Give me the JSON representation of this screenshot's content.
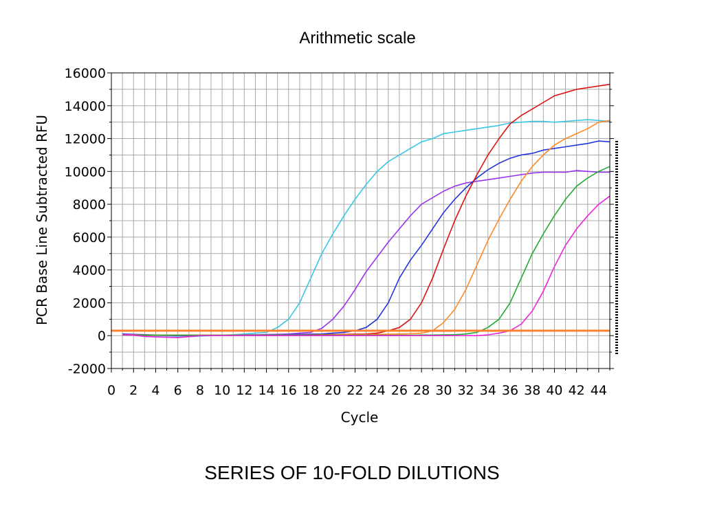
{
  "slide": {
    "title": "Arithmetic scale",
    "caption": "SERIES OF 10-FOLD DILUTIONS"
  },
  "chart_data": {
    "type": "line",
    "title": "Arithmetic scale",
    "xlabel": "Cycle",
    "ylabel": "PCR Base Line Subtracted RFU",
    "xlim": [
      0,
      45
    ],
    "ylim": [
      -2000,
      16000
    ],
    "xticks": [
      0,
      2,
      4,
      6,
      8,
      10,
      12,
      14,
      16,
      18,
      20,
      22,
      24,
      26,
      28,
      30,
      32,
      34,
      36,
      38,
      40,
      42,
      44
    ],
    "yticks": [
      -2000,
      0,
      2000,
      4000,
      6000,
      8000,
      10000,
      12000,
      14000,
      16000
    ],
    "grid": true,
    "legend": "none",
    "threshold": {
      "value": 300,
      "color": "#ff7f2a"
    },
    "series": [
      {
        "color": "#38c6e6",
        "x": [
          1,
          2,
          3,
          4,
          5,
          6,
          7,
          8,
          9,
          10,
          11,
          12,
          13,
          14,
          15,
          16,
          17,
          18,
          19,
          20,
          21,
          22,
          23,
          24,
          25,
          26,
          27,
          28,
          29,
          30,
          31,
          32,
          33,
          34,
          35,
          36,
          37,
          38,
          39,
          40,
          41,
          42,
          43,
          44,
          45
        ],
        "values": [
          50,
          30,
          -50,
          -70,
          -80,
          -80,
          -60,
          -30,
          0,
          30,
          60,
          100,
          150,
          200,
          500,
          1000,
          2000,
          3500,
          5000,
          6200,
          7300,
          8300,
          9200,
          10000,
          10600,
          11000,
          11400,
          11800,
          12000,
          12300,
          12400,
          12500,
          12600,
          12700,
          12800,
          12950,
          13000,
          13050,
          13050,
          13000,
          13050,
          13100,
          13150,
          13100,
          13050
        ]
      },
      {
        "color": "#9933ee",
        "x": [
          1,
          2,
          3,
          4,
          5,
          6,
          7,
          8,
          9,
          10,
          11,
          12,
          13,
          14,
          15,
          16,
          17,
          18,
          19,
          20,
          21,
          22,
          23,
          24,
          25,
          26,
          27,
          28,
          29,
          30,
          31,
          32,
          33,
          34,
          35,
          36,
          37,
          38,
          39,
          40,
          41,
          42,
          43,
          44,
          45
        ],
        "values": [
          80,
          60,
          30,
          20,
          10,
          0,
          0,
          10,
          20,
          30,
          40,
          50,
          60,
          70,
          80,
          100,
          150,
          200,
          450,
          1000,
          1800,
          2800,
          3900,
          4800,
          5700,
          6500,
          7300,
          8000,
          8400,
          8800,
          9100,
          9300,
          9400,
          9500,
          9600,
          9700,
          9800,
          9900,
          9950,
          9950,
          9950,
          10050,
          10000,
          9950,
          9950
        ]
      },
      {
        "color": "#2233dd",
        "x": [
          1,
          2,
          3,
          4,
          5,
          6,
          7,
          8,
          9,
          10,
          11,
          12,
          13,
          14,
          15,
          16,
          17,
          18,
          19,
          20,
          21,
          22,
          23,
          24,
          25,
          26,
          27,
          28,
          29,
          30,
          31,
          32,
          33,
          34,
          35,
          36,
          37,
          38,
          39,
          40,
          41,
          42,
          43,
          44,
          45
        ],
        "values": [
          100,
          80,
          60,
          40,
          30,
          20,
          20,
          20,
          20,
          30,
          30,
          40,
          40,
          50,
          60,
          70,
          80,
          90,
          100,
          150,
          200,
          300,
          500,
          1000,
          2000,
          3500,
          4600,
          5500,
          6500,
          7500,
          8300,
          9000,
          9600,
          10100,
          10500,
          10800,
          11000,
          11100,
          11300,
          11400,
          11500,
          11600,
          11700,
          11850,
          11800
        ]
      },
      {
        "color": "#dd1111",
        "x": [
          1,
          2,
          3,
          4,
          5,
          6,
          7,
          8,
          9,
          10,
          11,
          12,
          13,
          14,
          15,
          16,
          17,
          18,
          19,
          20,
          21,
          22,
          23,
          24,
          25,
          26,
          27,
          28,
          29,
          30,
          31,
          32,
          33,
          34,
          35,
          36,
          37,
          38,
          39,
          40,
          41,
          42,
          43,
          44,
          45
        ],
        "values": [
          50,
          40,
          30,
          30,
          30,
          30,
          30,
          30,
          30,
          30,
          30,
          30,
          30,
          30,
          40,
          40,
          40,
          50,
          60,
          70,
          80,
          90,
          100,
          150,
          300,
          500,
          1000,
          2000,
          3500,
          5300,
          7000,
          8500,
          9800,
          11000,
          12000,
          12900,
          13400,
          13800,
          14200,
          14600,
          14800,
          15000,
          15100,
          15200,
          15300
        ]
      },
      {
        "color": "#ff8822",
        "x": [
          1,
          2,
          3,
          4,
          5,
          6,
          7,
          8,
          9,
          10,
          11,
          12,
          13,
          14,
          15,
          16,
          17,
          18,
          19,
          20,
          21,
          22,
          23,
          24,
          25,
          26,
          27,
          28,
          29,
          30,
          31,
          32,
          33,
          34,
          35,
          36,
          37,
          38,
          39,
          40,
          41,
          42,
          43,
          44,
          45
        ],
        "values": [
          60,
          50,
          40,
          40,
          40,
          40,
          40,
          40,
          40,
          40,
          40,
          40,
          40,
          40,
          40,
          40,
          40,
          40,
          50,
          50,
          60,
          60,
          70,
          80,
          90,
          100,
          120,
          150,
          300,
          800,
          1600,
          2800,
          4300,
          5800,
          7100,
          8300,
          9400,
          10300,
          11000,
          11600,
          12000,
          12300,
          12600,
          13000,
          13100
        ]
      },
      {
        "color": "#22aa33",
        "x": [
          1,
          2,
          3,
          4,
          5,
          6,
          7,
          8,
          9,
          10,
          11,
          12,
          13,
          14,
          15,
          16,
          17,
          18,
          19,
          20,
          21,
          22,
          23,
          24,
          25,
          26,
          27,
          28,
          29,
          30,
          31,
          32,
          33,
          34,
          35,
          36,
          37,
          38,
          39,
          40,
          41,
          42,
          43,
          44,
          45
        ],
        "values": [
          40,
          30,
          30,
          30,
          30,
          30,
          30,
          30,
          30,
          30,
          30,
          30,
          30,
          30,
          30,
          30,
          30,
          30,
          30,
          30,
          30,
          30,
          30,
          30,
          30,
          30,
          30,
          40,
          40,
          50,
          60,
          100,
          200,
          500,
          1000,
          2000,
          3500,
          5000,
          6200,
          7300,
          8300,
          9100,
          9600,
          10000,
          10300
        ]
      },
      {
        "color": "#ee22dd",
        "x": [
          1,
          2,
          3,
          4,
          5,
          6,
          7,
          8,
          9,
          10,
          11,
          12,
          13,
          14,
          15,
          16,
          17,
          18,
          19,
          20,
          21,
          22,
          23,
          24,
          25,
          26,
          27,
          28,
          29,
          30,
          31,
          32,
          33,
          34,
          35,
          36,
          37,
          38,
          39,
          40,
          41,
          42,
          43,
          44,
          45
        ],
        "values": [
          60,
          20,
          -40,
          -80,
          -100,
          -120,
          -60,
          0,
          0,
          0,
          0,
          0,
          0,
          0,
          0,
          0,
          0,
          0,
          0,
          0,
          0,
          0,
          0,
          0,
          0,
          0,
          0,
          0,
          0,
          0,
          0,
          0,
          0,
          50,
          150,
          300,
          700,
          1500,
          2700,
          4200,
          5500,
          6500,
          7300,
          8000,
          8500
        ]
      }
    ]
  }
}
